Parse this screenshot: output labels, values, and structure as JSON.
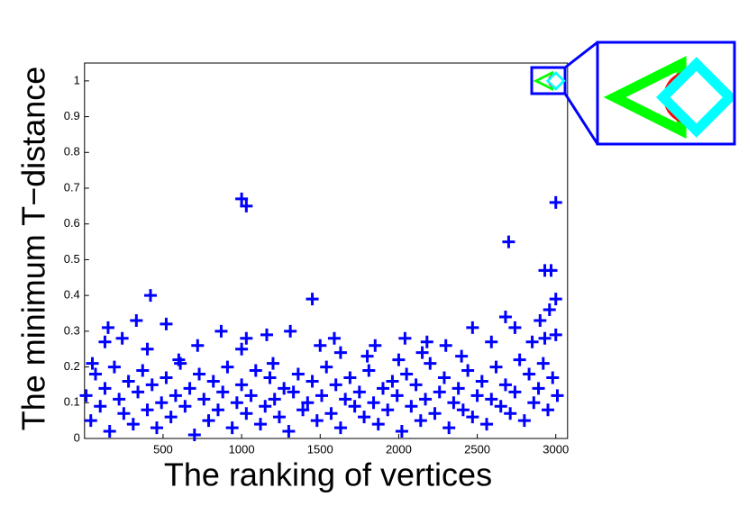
{
  "chart_data": {
    "type": "scatter",
    "x_label": "The ranking of vertices",
    "y_label": "The minimum T−distance",
    "xlim": [
      0,
      3075
    ],
    "ylim": [
      0,
      1.05
    ],
    "xticks": [
      500,
      1000,
      1500,
      2000,
      2500,
      3000
    ],
    "yticks": [
      0,
      0.1,
      0.2,
      0.3,
      0.4,
      0.5,
      0.6,
      0.7,
      0.8,
      0.9,
      1
    ],
    "series": [
      {
        "color": "#0000ff",
        "marker": "plus",
        "x": [
          1000,
          1030,
          3000,
          2700,
          2930,
          2970,
          420,
          1450,
          3000,
          2960,
          2900,
          2680,
          520,
          330,
          150,
          870,
          1310,
          1030,
          1160,
          1590,
          2040,
          2470,
          2740,
          1850,
          2180,
          720,
          1500,
          2300,
          2590,
          2930,
          3000,
          50,
          130,
          240,
          400,
          600,
          1000,
          1200,
          1630,
          1800,
          2000,
          2150,
          2400,
          2850,
          10,
          40,
          70,
          100,
          130,
          160,
          190,
          220,
          250,
          280,
          310,
          340,
          370,
          400,
          430,
          460,
          490,
          520,
          550,
          580,
          610,
          640,
          670,
          700,
          730,
          760,
          790,
          820,
          850,
          880,
          910,
          940,
          970,
          1000,
          1030,
          1060,
          1090,
          1120,
          1150,
          1180,
          1210,
          1240,
          1270,
          1300,
          1330,
          1360,
          1390,
          1420,
          1450,
          1480,
          1510,
          1540,
          1570,
          1600,
          1630,
          1660,
          1690,
          1720,
          1750,
          1780,
          1810,
          1840,
          1870,
          1900,
          1930,
          1960,
          1990,
          2020,
          2050,
          2080,
          2110,
          2140,
          2170,
          2200,
          2230,
          2260,
          2290,
          2320,
          2350,
          2380,
          2410,
          2440,
          2470,
          2500,
          2530,
          2560,
          2590,
          2620,
          2650,
          2680,
          2710,
          2740,
          2770,
          2800,
          2830,
          2860,
          2890,
          2920,
          2950,
          2980,
          3010
        ],
        "values": [
          0.67,
          0.65,
          0.66,
          0.55,
          0.47,
          0.47,
          0.4,
          0.39,
          0.39,
          0.36,
          0.33,
          0.34,
          0.32,
          0.33,
          0.31,
          0.3,
          0.3,
          0.28,
          0.29,
          0.28,
          0.28,
          0.31,
          0.31,
          0.26,
          0.27,
          0.26,
          0.26,
          0.26,
          0.27,
          0.28,
          0.29,
          0.21,
          0.27,
          0.28,
          0.25,
          0.22,
          0.25,
          0.21,
          0.24,
          0.23,
          0.22,
          0.24,
          0.23,
          0.27,
          0.12,
          0.05,
          0.18,
          0.09,
          0.14,
          0.02,
          0.2,
          0.11,
          0.07,
          0.16,
          0.04,
          0.13,
          0.19,
          0.08,
          0.15,
          0.03,
          0.1,
          0.17,
          0.06,
          0.12,
          0.21,
          0.09,
          0.14,
          0.01,
          0.18,
          0.11,
          0.05,
          0.16,
          0.08,
          0.13,
          0.2,
          0.03,
          0.1,
          0.15,
          0.07,
          0.12,
          0.19,
          0.04,
          0.09,
          0.17,
          0.11,
          0.06,
          0.14,
          0.02,
          0.13,
          0.18,
          0.08,
          0.1,
          0.16,
          0.05,
          0.12,
          0.2,
          0.07,
          0.15,
          0.03,
          0.11,
          0.17,
          0.09,
          0.13,
          0.06,
          0.19,
          0.1,
          0.04,
          0.14,
          0.08,
          0.16,
          0.12,
          0.02,
          0.18,
          0.09,
          0.15,
          0.05,
          0.11,
          0.21,
          0.07,
          0.13,
          0.17,
          0.03,
          0.1,
          0.14,
          0.08,
          0.19,
          0.06,
          0.12,
          0.16,
          0.04,
          0.11,
          0.2,
          0.09,
          0.15,
          0.07,
          0.13,
          0.22,
          0.05,
          0.18,
          0.1,
          0.14,
          0.21,
          0.08,
          0.17,
          0.12
        ]
      },
      {
        "color": "#00ff00",
        "marker": "triangle-left",
        "x": [
          2925
        ],
        "values": [
          1
        ]
      },
      {
        "color": "#ff0000",
        "marker": "circle",
        "x": [
          2990
        ],
        "values": [
          1
        ]
      },
      {
        "color": "#00ffff",
        "marker": "diamond",
        "x": [
          3000
        ],
        "values": [
          1
        ]
      }
    ]
  }
}
